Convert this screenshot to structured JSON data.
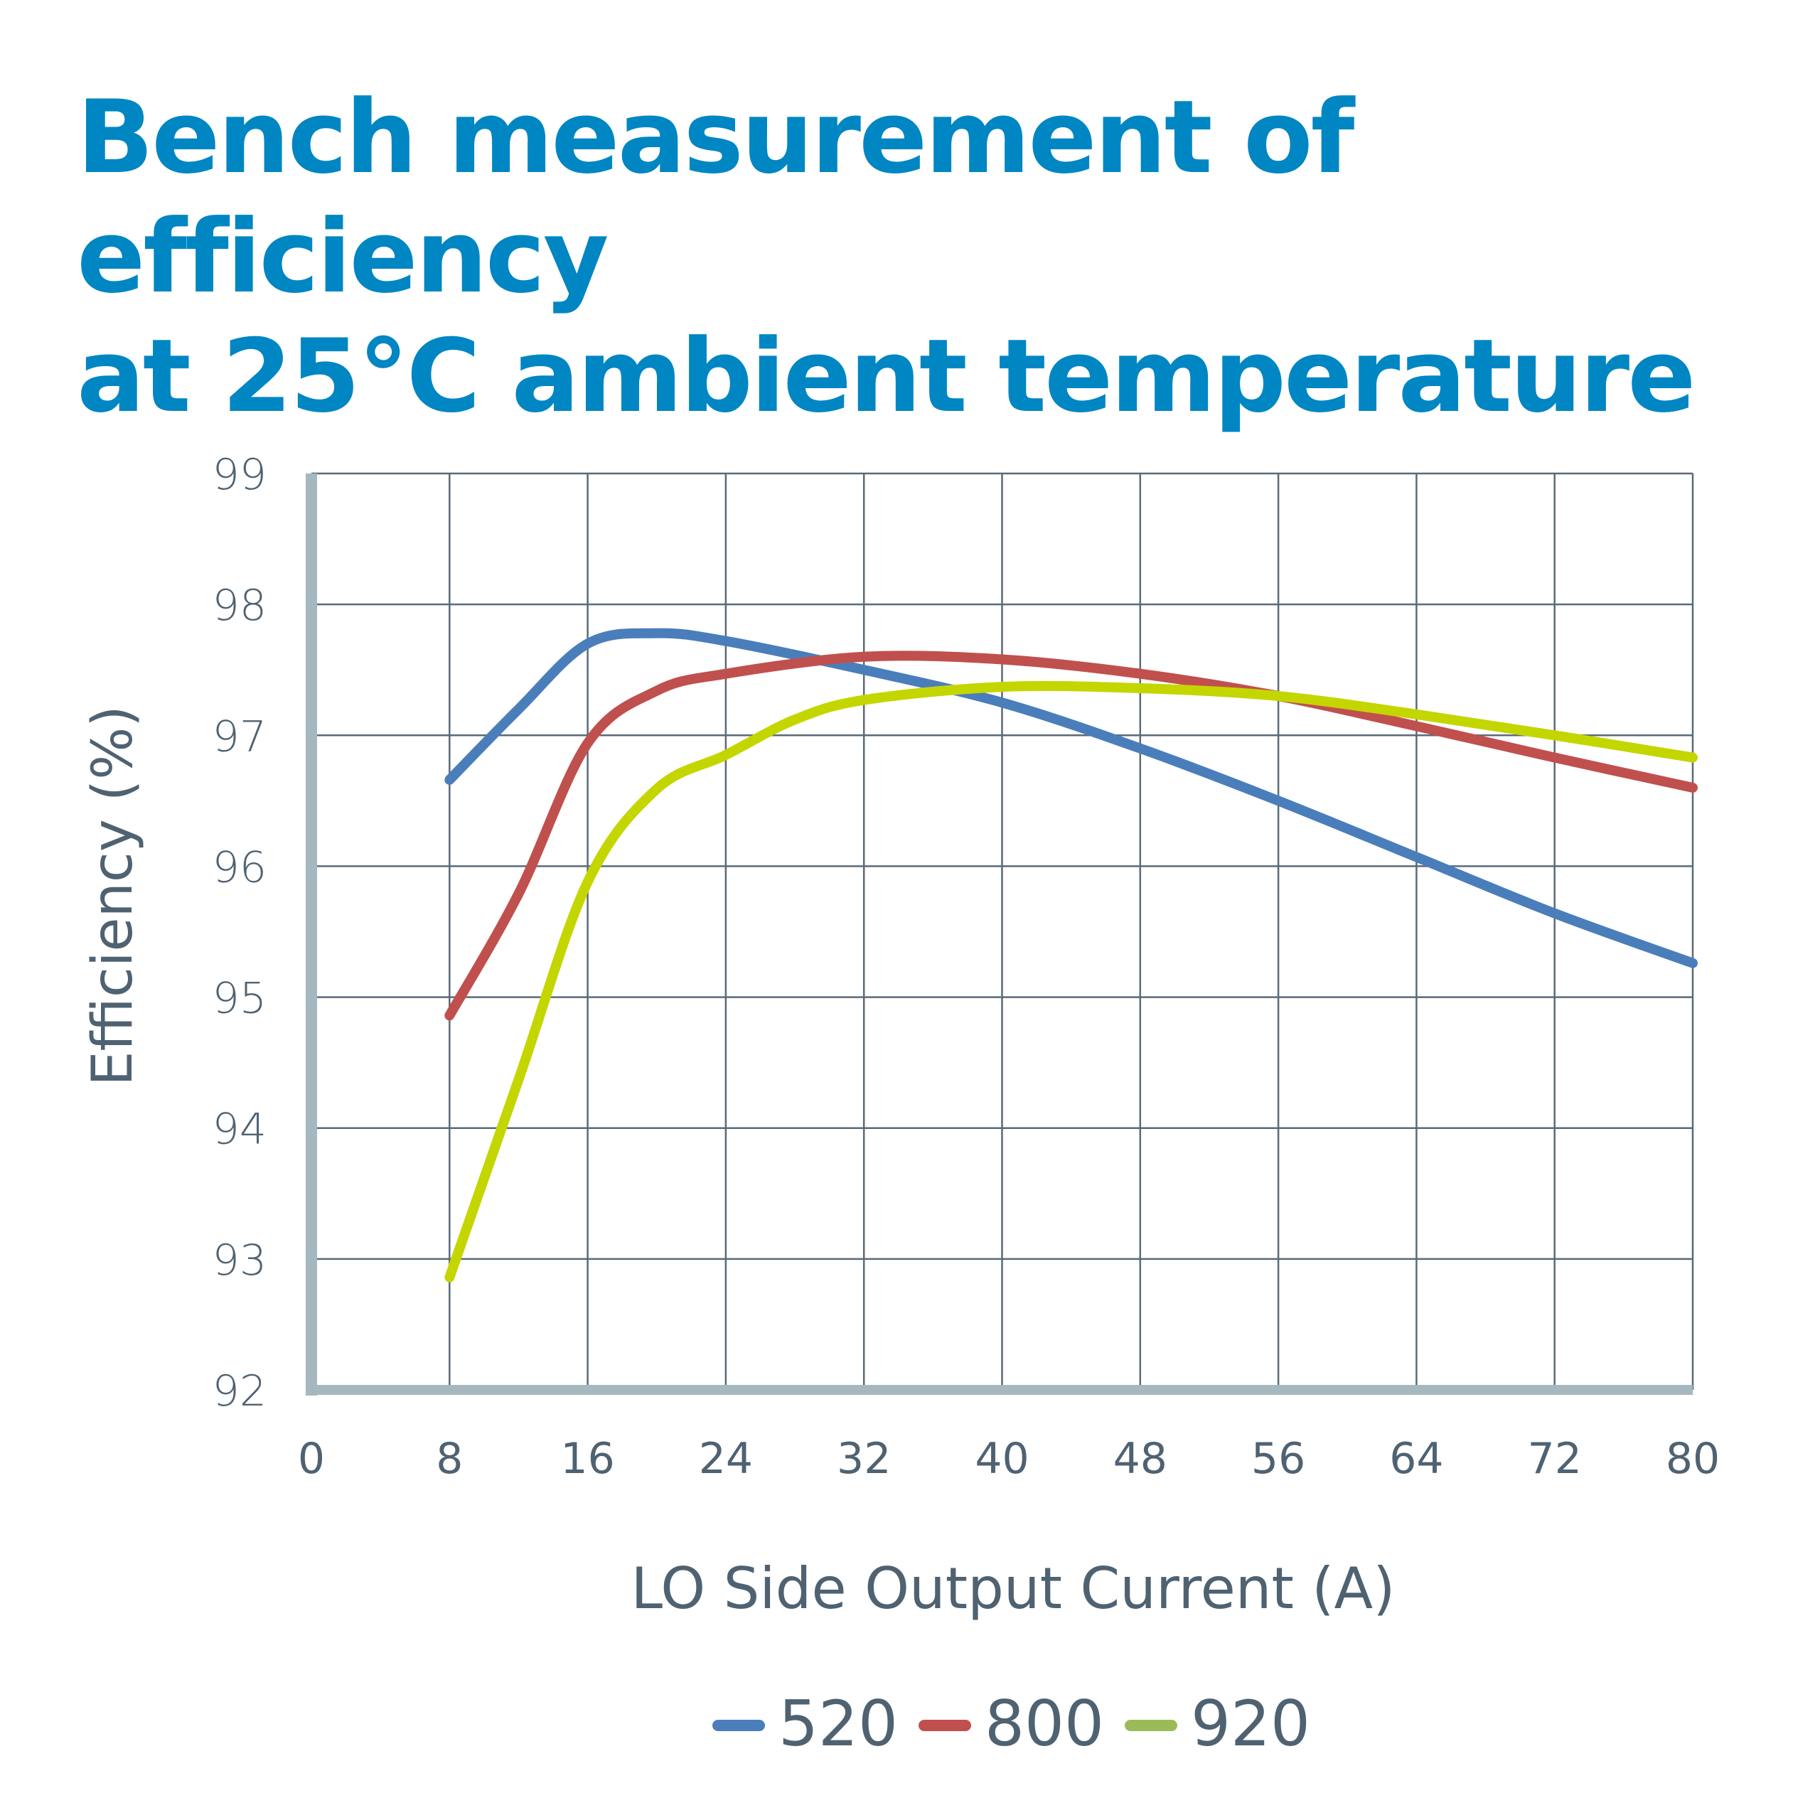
{
  "title_lines": [
    "Bench measurement of efficiency",
    "at 25°C ambient temperature"
  ],
  "colors": {
    "title": "#0086c3",
    "text": "#4f6272",
    "grid": "#5a6a78",
    "axis": "#a6b8bf"
  },
  "chart_data": {
    "type": "line",
    "title": "Bench measurement of efficiency at 25°C ambient temperature",
    "xlabel": "LO Side Output Current (A)",
    "ylabel": "Efficiency (%)",
    "xlim": [
      0,
      80
    ],
    "ylim": [
      92,
      99
    ],
    "xticks": [
      0,
      8,
      16,
      24,
      32,
      40,
      48,
      56,
      64,
      72,
      80
    ],
    "yticks": [
      92,
      93,
      94,
      95,
      96,
      97,
      98,
      99
    ],
    "grid": true,
    "legend": "bottom",
    "series": [
      {
        "name": "520",
        "color": "#4a7ebb",
        "legend_color": "#4a7ebb",
        "x": [
          8,
          12,
          16,
          20,
          24,
          32,
          40,
          48,
          56,
          64,
          72,
          80
        ],
        "y": [
          96.66,
          97.2,
          97.7,
          97.78,
          97.72,
          97.5,
          97.25,
          96.9,
          96.5,
          96.07,
          95.64,
          95.26
        ]
      },
      {
        "name": "800",
        "color": "#c0504d",
        "legend_color": "#c0504d",
        "x": [
          8,
          12,
          16,
          20,
          24,
          32,
          40,
          48,
          56,
          64,
          72,
          80
        ],
        "y": [
          94.86,
          95.79,
          96.94,
          97.34,
          97.47,
          97.6,
          97.58,
          97.47,
          97.3,
          97.07,
          96.83,
          96.6
        ]
      },
      {
        "name": "920",
        "color": "#c4d600",
        "legend_color": "#9bbb59",
        "x": [
          8,
          12,
          16,
          20,
          24,
          28,
          32,
          40,
          48,
          56,
          64,
          72,
          80
        ],
        "y": [
          92.86,
          94.37,
          95.88,
          96.59,
          96.85,
          97.12,
          97.27,
          97.37,
          97.36,
          97.3,
          97.16,
          97.0,
          96.83
        ]
      }
    ]
  }
}
